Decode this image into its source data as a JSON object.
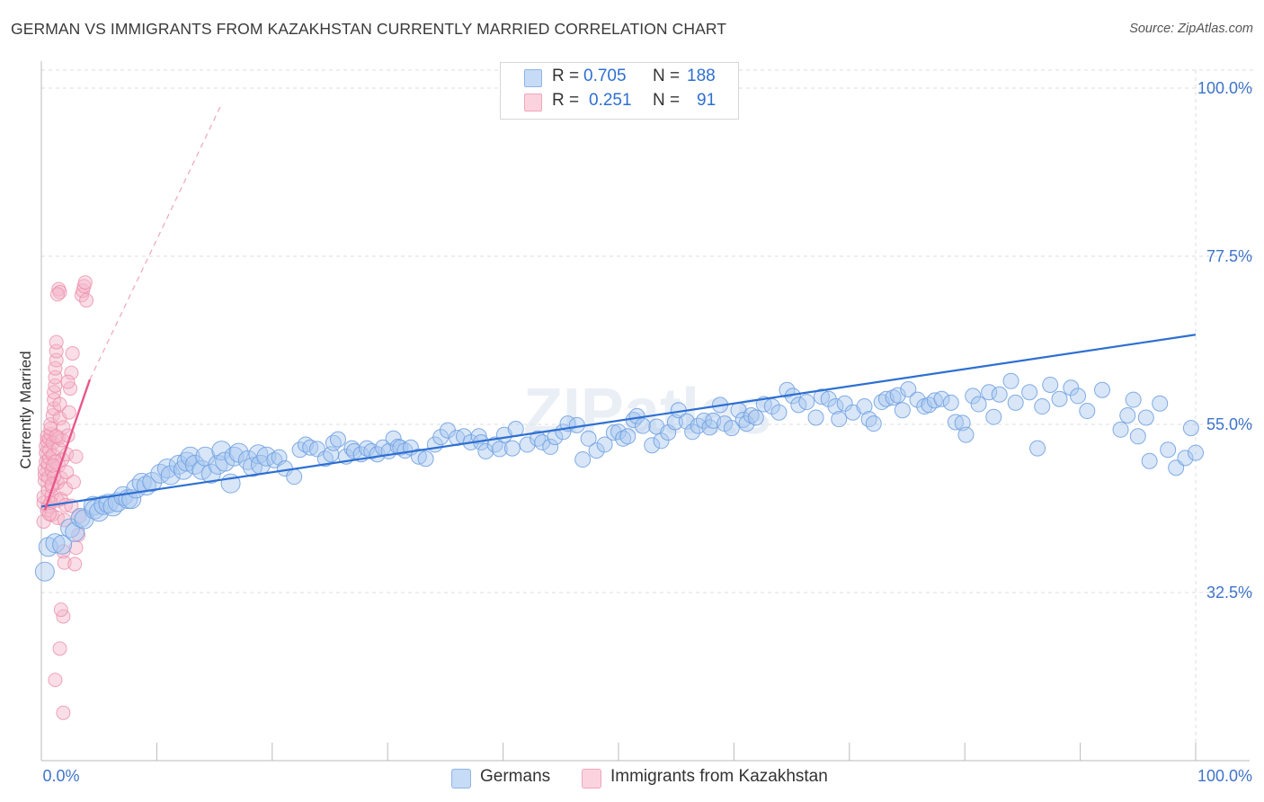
{
  "title": "GERMAN VS IMMIGRANTS FROM KAZAKHSTAN CURRENTLY MARRIED CORRELATION CHART",
  "source": "Source: ZipAtlas.com",
  "watermark": "ZIPatlas",
  "legend_top": {
    "rows": [
      {
        "r_label": "R =",
        "r_value": "0.705",
        "n_label": "N =",
        "n_value": "188",
        "color": "#a9c7ef"
      },
      {
        "r_label": "R =",
        "r_value": "0.251",
        "n_label": "N =",
        "n_value": "91",
        "color": "#f5b6c9"
      }
    ]
  },
  "legend_bottom": {
    "items": [
      {
        "label": "Germans",
        "color": "#a9c7ef"
      },
      {
        "label": "Immigrants from Kazakhstan",
        "color": "#f5b6c9"
      }
    ]
  },
  "colors": {
    "blue_fill": "#a9c7ef",
    "blue_stroke": "#6d9fe0",
    "blue_line": "#2e6fd1",
    "pink_fill": "#f5b6c9",
    "pink_stroke": "#ec8fab",
    "pink_line": "#e8578a",
    "tick_label": "#3f74c9",
    "grid": "#dddddd"
  },
  "chart_data": {
    "type": "scatter",
    "title": "GERMAN VS IMMIGRANTS FROM KAZAKHSTAN CURRENTLY MARRIED CORRELATION CHART",
    "xlabel": "",
    "ylabel": "Currently Married",
    "xlim": [
      0,
      100
    ],
    "ylim": [
      10,
      100
    ],
    "x_tick_labels": [
      "0.0%",
      "100.0%"
    ],
    "y_ticks": [
      32.5,
      55.0,
      77.5,
      100.0
    ],
    "y_tick_labels": [
      "32.5%",
      "55.0%",
      "77.5%",
      "100.0%"
    ],
    "grid": true,
    "series": [
      {
        "name": "Germans",
        "color": "#a9c7ef",
        "R": 0.705,
        "N": 188,
        "trend": {
          "x": [
            0,
            100
          ],
          "y": [
            44.0,
            67.0
          ]
        },
        "points": [
          [
            0.3,
            35.3
          ],
          [
            0.6,
            38.6
          ],
          [
            1.2,
            39.1
          ],
          [
            1.8,
            38.9
          ],
          [
            2.5,
            41.1
          ],
          [
            2.9,
            40.6
          ],
          [
            3.4,
            42.5
          ],
          [
            3.7,
            42.3
          ],
          [
            4.5,
            44.1
          ],
          [
            4.6,
            43.6
          ],
          [
            5.0,
            43.3
          ],
          [
            5.4,
            44.2
          ],
          [
            5.8,
            44.4
          ],
          [
            6.2,
            44.0
          ],
          [
            6.6,
            44.6
          ],
          [
            7.1,
            45.4
          ],
          [
            7.5,
            45.0
          ],
          [
            7.8,
            45.0
          ],
          [
            8.2,
            46.4
          ],
          [
            8.7,
            47.2
          ],
          [
            9.1,
            46.8
          ],
          [
            9.6,
            47.3
          ],
          [
            10.3,
            48.4
          ],
          [
            10.9,
            49.1
          ],
          [
            11.2,
            48.2
          ],
          [
            11.9,
            49.6
          ],
          [
            12.3,
            48.9
          ],
          [
            12.6,
            50.0
          ],
          [
            12.9,
            50.7
          ],
          [
            13.3,
            49.6
          ],
          [
            13.9,
            48.9
          ],
          [
            14.2,
            50.7
          ],
          [
            14.7,
            48.4
          ],
          [
            15.3,
            49.6
          ],
          [
            15.6,
            51.5
          ],
          [
            15.9,
            50.0
          ],
          [
            16.4,
            47.1
          ],
          [
            16.7,
            50.7
          ],
          [
            17.1,
            51.2
          ],
          [
            17.9,
            50.2
          ],
          [
            18.3,
            49.3
          ],
          [
            18.8,
            51.0
          ],
          [
            19.0,
            49.6
          ],
          [
            19.5,
            50.7
          ],
          [
            20.2,
            50.2
          ],
          [
            20.6,
            50.6
          ],
          [
            21.1,
            49.1
          ],
          [
            21.9,
            48.0
          ],
          [
            22.4,
            51.6
          ],
          [
            22.9,
            52.3
          ],
          [
            23.3,
            51.9
          ],
          [
            23.9,
            51.7
          ],
          [
            24.6,
            50.4
          ],
          [
            25.1,
            51.0
          ],
          [
            25.3,
            52.5
          ],
          [
            25.7,
            53.0
          ],
          [
            26.4,
            50.7
          ],
          [
            26.9,
            51.8
          ],
          [
            27.1,
            51.4
          ],
          [
            27.7,
            51.0
          ],
          [
            28.2,
            51.8
          ],
          [
            28.6,
            51.4
          ],
          [
            29.1,
            51.0
          ],
          [
            29.6,
            51.9
          ],
          [
            30.1,
            51.4
          ],
          [
            30.5,
            53.1
          ],
          [
            30.9,
            52.0
          ],
          [
            31.1,
            51.9
          ],
          [
            31.5,
            51.5
          ],
          [
            32.0,
            51.9
          ],
          [
            32.7,
            50.7
          ],
          [
            33.3,
            50.4
          ],
          [
            34.1,
            52.3
          ],
          [
            34.6,
            53.3
          ],
          [
            35.2,
            54.2
          ],
          [
            36.0,
            53.2
          ],
          [
            36.6,
            53.4
          ],
          [
            37.2,
            52.6
          ],
          [
            37.9,
            53.4
          ],
          [
            38.1,
            52.6
          ],
          [
            38.5,
            51.4
          ],
          [
            39.3,
            52.3
          ],
          [
            39.7,
            51.7
          ],
          [
            40.1,
            53.6
          ],
          [
            40.8,
            51.8
          ],
          [
            41.1,
            54.4
          ],
          [
            42.1,
            52.3
          ],
          [
            43.0,
            53.1
          ],
          [
            43.4,
            52.6
          ],
          [
            44.1,
            52.0
          ],
          [
            44.5,
            53.3
          ],
          [
            45.2,
            54.0
          ],
          [
            45.6,
            55.1
          ],
          [
            46.4,
            54.9
          ],
          [
            46.9,
            50.3
          ],
          [
            47.4,
            53.1
          ],
          [
            48.1,
            51.5
          ],
          [
            48.8,
            52.3
          ],
          [
            49.6,
            53.9
          ],
          [
            50.0,
            54.0
          ],
          [
            50.4,
            53.1
          ],
          [
            50.8,
            53.4
          ],
          [
            51.3,
            55.6
          ],
          [
            51.6,
            56.1
          ],
          [
            52.1,
            54.8
          ],
          [
            52.9,
            52.2
          ],
          [
            53.3,
            54.7
          ],
          [
            53.7,
            52.8
          ],
          [
            54.3,
            53.9
          ],
          [
            54.9,
            55.3
          ],
          [
            55.2,
            56.9
          ],
          [
            55.9,
            55.4
          ],
          [
            56.4,
            54.0
          ],
          [
            56.9,
            54.8
          ],
          [
            57.4,
            55.5
          ],
          [
            57.9,
            54.6
          ],
          [
            58.2,
            55.5
          ],
          [
            58.8,
            57.6
          ],
          [
            59.2,
            55.1
          ],
          [
            59.8,
            54.5
          ],
          [
            60.4,
            56.9
          ],
          [
            60.8,
            55.6
          ],
          [
            61.1,
            55.1
          ],
          [
            61.5,
            56.2
          ],
          [
            61.9,
            55.9
          ],
          [
            62.6,
            57.7
          ],
          [
            63.3,
            57.4
          ],
          [
            63.9,
            56.6
          ],
          [
            64.6,
            59.6
          ],
          [
            65.1,
            58.8
          ],
          [
            65.6,
            57.6
          ],
          [
            66.3,
            58.0
          ],
          [
            67.1,
            55.9
          ],
          [
            67.6,
            58.7
          ],
          [
            68.2,
            58.4
          ],
          [
            68.8,
            57.4
          ],
          [
            69.1,
            55.7
          ],
          [
            69.6,
            57.8
          ],
          [
            70.3,
            56.6
          ],
          [
            71.3,
            57.4
          ],
          [
            71.7,
            55.7
          ],
          [
            72.1,
            55.1
          ],
          [
            72.8,
            58.0
          ],
          [
            73.2,
            58.4
          ],
          [
            73.8,
            58.6
          ],
          [
            74.2,
            58.9
          ],
          [
            74.6,
            56.9
          ],
          [
            75.1,
            59.7
          ],
          [
            75.9,
            58.3
          ],
          [
            76.5,
            57.4
          ],
          [
            76.9,
            57.6
          ],
          [
            77.4,
            58.2
          ],
          [
            78.0,
            58.4
          ],
          [
            78.8,
            57.9
          ],
          [
            79.2,
            55.3
          ],
          [
            79.8,
            55.2
          ],
          [
            80.1,
            53.6
          ],
          [
            80.7,
            58.8
          ],
          [
            81.2,
            57.7
          ],
          [
            82.1,
            59.3
          ],
          [
            82.5,
            56.0
          ],
          [
            83.0,
            59.0
          ],
          [
            84.0,
            60.8
          ],
          [
            84.4,
            57.9
          ],
          [
            85.6,
            59.3
          ],
          [
            86.3,
            51.8
          ],
          [
            86.7,
            57.4
          ],
          [
            87.4,
            60.3
          ],
          [
            88.2,
            58.4
          ],
          [
            89.2,
            59.9
          ],
          [
            89.8,
            58.8
          ],
          [
            90.6,
            56.8
          ],
          [
            91.9,
            59.6
          ],
          [
            93.5,
            54.3
          ],
          [
            94.1,
            56.2
          ],
          [
            94.6,
            58.3
          ],
          [
            95.0,
            53.4
          ],
          [
            95.7,
            55.9
          ],
          [
            96.0,
            50.1
          ],
          [
            96.9,
            57.8
          ],
          [
            97.6,
            51.6
          ],
          [
            98.3,
            49.2
          ],
          [
            99.1,
            50.5
          ],
          [
            99.6,
            54.5
          ],
          [
            100.0,
            51.2
          ]
        ]
      },
      {
        "name": "Immigrants from Kazakhstan",
        "color": "#f5b6c9",
        "R": 0.251,
        "N": 91,
        "trend": {
          "x": [
            0.3,
            4.2
          ],
          "y": [
            43.5,
            61.0
          ]
        },
        "trend_extension": {
          "x": [
            4.2,
            15.5
          ],
          "y": [
            61.0,
            97.5
          ]
        },
        "points": [
          [
            0.2,
            42.0
          ],
          [
            0.2,
            44.5
          ],
          [
            0.2,
            45.3
          ],
          [
            0.3,
            47.5
          ],
          [
            0.3,
            48.3
          ],
          [
            0.3,
            49.0
          ],
          [
            0.4,
            50.0
          ],
          [
            0.4,
            51.2
          ],
          [
            0.4,
            52.1
          ],
          [
            0.5,
            52.8
          ],
          [
            0.5,
            53.4
          ],
          [
            0.5,
            43.5
          ],
          [
            0.6,
            44.0
          ],
          [
            0.6,
            46.2
          ],
          [
            0.6,
            47.9
          ],
          [
            0.6,
            49.7
          ],
          [
            0.7,
            50.5
          ],
          [
            0.7,
            51.5
          ],
          [
            0.7,
            53.0
          ],
          [
            0.8,
            53.7
          ],
          [
            0.8,
            54.4
          ],
          [
            0.8,
            55.0
          ],
          [
            0.9,
            42.9
          ],
          [
            0.9,
            45.5
          ],
          [
            0.9,
            46.7
          ],
          [
            0.9,
            48.9
          ],
          [
            1.0,
            50.9
          ],
          [
            1.0,
            52.5
          ],
          [
            1.0,
            56.2
          ],
          [
            1.1,
            57.1
          ],
          [
            1.1,
            58.3
          ],
          [
            1.1,
            59.3
          ],
          [
            1.2,
            60.2
          ],
          [
            1.2,
            61.3
          ],
          [
            1.2,
            62.5
          ],
          [
            1.3,
            63.6
          ],
          [
            1.3,
            64.8
          ],
          [
            1.3,
            66.0
          ],
          [
            1.4,
            42.5
          ],
          [
            1.4,
            44.8
          ],
          [
            1.4,
            47.2
          ],
          [
            1.5,
            49.5
          ],
          [
            1.5,
            51.8
          ],
          [
            1.5,
            53.2
          ],
          [
            1.6,
            55.8
          ],
          [
            1.6,
            57.7
          ],
          [
            1.7,
            45.0
          ],
          [
            1.7,
            47.8
          ],
          [
            1.8,
            50.3
          ],
          [
            1.8,
            52.9
          ],
          [
            1.9,
            54.6
          ],
          [
            1.9,
            38.0
          ],
          [
            2.0,
            36.5
          ],
          [
            2.0,
            42.2
          ],
          [
            2.1,
            44.2
          ],
          [
            2.1,
            46.4
          ],
          [
            2.2,
            48.6
          ],
          [
            2.2,
            51.0
          ],
          [
            2.3,
            53.5
          ],
          [
            2.4,
            56.6
          ],
          [
            2.5,
            59.8
          ],
          [
            2.6,
            61.9
          ],
          [
            2.7,
            64.5
          ],
          [
            2.9,
            36.3
          ],
          [
            3.0,
            38.5
          ],
          [
            3.2,
            40.2
          ],
          [
            3.3,
            42.7
          ],
          [
            3.5,
            72.3
          ],
          [
            3.6,
            72.9
          ],
          [
            3.7,
            73.5
          ],
          [
            3.8,
            74.0
          ],
          [
            1.5,
            73.1
          ],
          [
            1.6,
            72.7
          ],
          [
            1.4,
            72.4
          ],
          [
            3.9,
            71.6
          ],
          [
            1.1,
            48.0
          ],
          [
            1.2,
            50.0
          ],
          [
            1.3,
            53.4
          ],
          [
            0.8,
            44.5
          ],
          [
            0.9,
            47.0
          ],
          [
            1.0,
            49.5
          ],
          [
            1.9,
            29.3
          ],
          [
            1.6,
            25.0
          ],
          [
            1.2,
            20.8
          ],
          [
            1.9,
            16.4
          ],
          [
            2.6,
            44.1
          ],
          [
            2.8,
            47.3
          ],
          [
            3.0,
            50.7
          ],
          [
            1.7,
            30.2
          ],
          [
            2.3,
            60.7
          ],
          [
            0.7,
            43.0
          ]
        ]
      }
    ]
  }
}
